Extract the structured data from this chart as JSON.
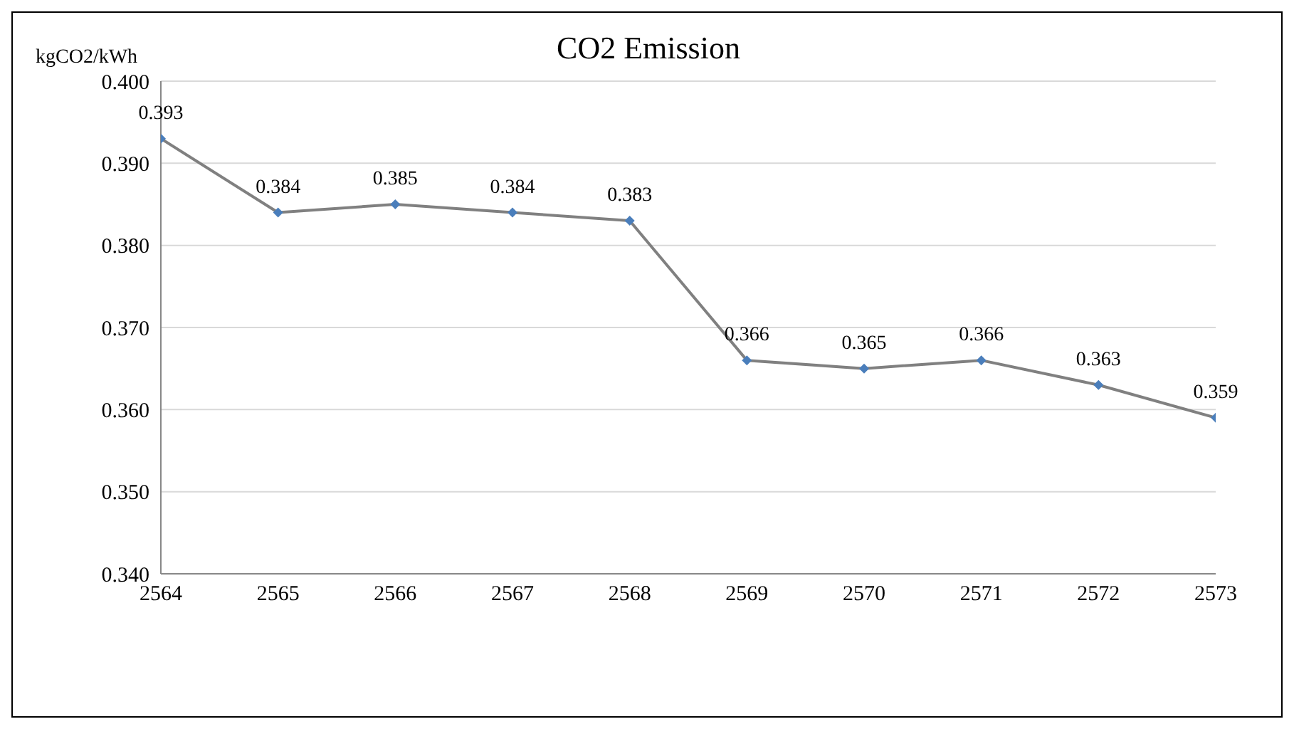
{
  "chart_data": {
    "type": "line",
    "title": "CO2 Emission",
    "ylabel": "kgCO2/kWh",
    "x": [
      2564,
      2565,
      2566,
      2567,
      2568,
      2569,
      2570,
      2571,
      2572,
      2573
    ],
    "xlim": [
      2564,
      2573
    ],
    "xticks": [
      2564,
      2565,
      2566,
      2567,
      2568,
      2569,
      2570,
      2571,
      2572,
      2573
    ],
    "ylim": [
      0.34,
      0.4
    ],
    "yticks": [
      {
        "value": 0.34,
        "label": "0.340"
      },
      {
        "value": 0.35,
        "label": "0.350"
      },
      {
        "value": 0.36,
        "label": "0.360"
      },
      {
        "value": 0.37,
        "label": "0.370"
      },
      {
        "value": 0.38,
        "label": "0.380"
      },
      {
        "value": 0.39,
        "label": "0.390"
      },
      {
        "value": 0.4,
        "label": "0.400"
      }
    ],
    "series": [
      {
        "color": "#808080",
        "values": [
          0.393,
          0.384,
          0.385,
          0.384,
          0.383,
          0.366,
          0.365,
          0.366,
          0.363,
          0.359
        ]
      }
    ],
    "marker": "diamond",
    "line_style": "solid",
    "grid": "y",
    "legend": false,
    "data_labels": true
  }
}
